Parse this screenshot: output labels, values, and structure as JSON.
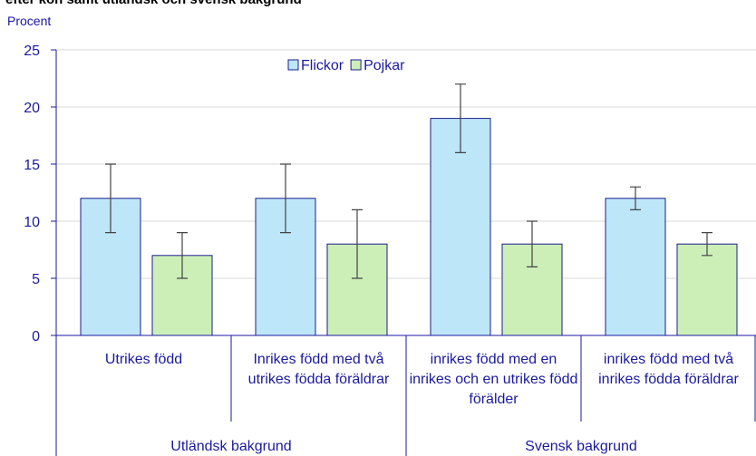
{
  "chart_data": {
    "type": "bar",
    "title": "efter kön samt utländsk och svensk bakgrund",
    "y_label": "Procent",
    "categories": [
      "Utrikes född",
      "Inrikes född med två utrikes födda föräldrar",
      "inrikes född med en inrikes och en utrikes född förälder",
      "inrikes född med två inrikes födda föräldrar"
    ],
    "groups": [
      {
        "label": "Utländsk bakgrund",
        "size": 2
      },
      {
        "label": "Svensk bakgrund",
        "size": 2
      }
    ],
    "series": [
      {
        "name": "Flickor",
        "color": "#bde6f8",
        "values": [
          12,
          12,
          19,
          12
        ],
        "errors": [
          3,
          3,
          3,
          1
        ]
      },
      {
        "name": "Pojkar",
        "color": "#ccefb8",
        "values": [
          7,
          8,
          8,
          8
        ],
        "errors": [
          2,
          3,
          2,
          1
        ]
      }
    ],
    "ylim": [
      0,
      25
    ],
    "yticks": [
      0,
      5,
      10,
      15,
      20,
      25
    ],
    "grid": true,
    "legend": "top"
  }
}
